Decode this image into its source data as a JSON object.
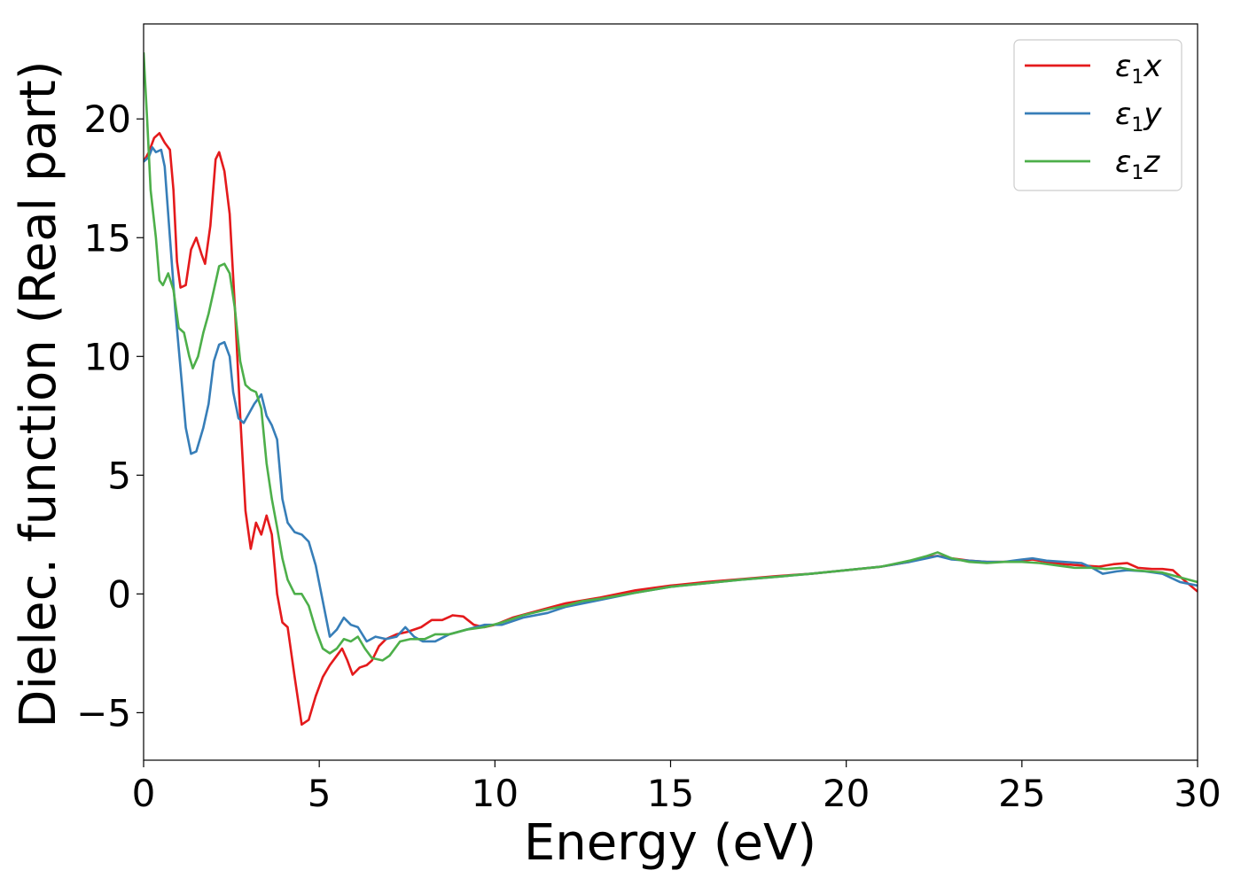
{
  "chart_data": {
    "type": "line",
    "xlabel": "Energy (eV)",
    "ylabel": "Dielec. function (Real part)",
    "xlim": [
      0,
      30
    ],
    "ylim": [
      -7,
      24
    ],
    "xticks": [
      0,
      5,
      10,
      15,
      20,
      25,
      30
    ],
    "xtick_labels": [
      "0",
      "5",
      "10",
      "15",
      "20",
      "25",
      "30"
    ],
    "yticks": [
      -5,
      0,
      5,
      10,
      15,
      20
    ],
    "ytick_labels": [
      "−5",
      "0",
      "5",
      "10",
      "15",
      "20"
    ],
    "grid": false,
    "legend_position": "top-right",
    "series": [
      {
        "name": "ε1x",
        "legend": {
          "sym": "ε",
          "sub": "1",
          "axis": "x"
        },
        "color": "#e41a1c",
        "points": [
          [
            0,
            18.2
          ],
          [
            0.15,
            18.6
          ],
          [
            0.3,
            19.2
          ],
          [
            0.45,
            19.4
          ],
          [
            0.6,
            19.0
          ],
          [
            0.75,
            18.7
          ],
          [
            0.85,
            17.0
          ],
          [
            0.95,
            14.0
          ],
          [
            1.05,
            12.9
          ],
          [
            1.2,
            13.0
          ],
          [
            1.35,
            14.5
          ],
          [
            1.5,
            15.0
          ],
          [
            1.65,
            14.3
          ],
          [
            1.75,
            13.9
          ],
          [
            1.9,
            15.5
          ],
          [
            2.05,
            18.3
          ],
          [
            2.15,
            18.6
          ],
          [
            2.3,
            17.8
          ],
          [
            2.45,
            16.0
          ],
          [
            2.6,
            12.0
          ],
          [
            2.75,
            7.5
          ],
          [
            2.9,
            3.5
          ],
          [
            3.05,
            1.9
          ],
          [
            3.2,
            3.0
          ],
          [
            3.35,
            2.5
          ],
          [
            3.5,
            3.3
          ],
          [
            3.65,
            2.5
          ],
          [
            3.8,
            0.0
          ],
          [
            3.95,
            -1.2
          ],
          [
            4.1,
            -1.4
          ],
          [
            4.3,
            -3.5
          ],
          [
            4.5,
            -5.5
          ],
          [
            4.7,
            -5.3
          ],
          [
            4.9,
            -4.3
          ],
          [
            5.1,
            -3.5
          ],
          [
            5.3,
            -3.0
          ],
          [
            5.5,
            -2.6
          ],
          [
            5.65,
            -2.3
          ],
          [
            5.8,
            -2.8
          ],
          [
            5.95,
            -3.4
          ],
          [
            6.15,
            -3.1
          ],
          [
            6.35,
            -3.0
          ],
          [
            6.5,
            -2.8
          ],
          [
            6.7,
            -2.2
          ],
          [
            6.9,
            -1.9
          ],
          [
            7.2,
            -1.7
          ],
          [
            7.5,
            -1.6
          ],
          [
            7.9,
            -1.4
          ],
          [
            8.2,
            -1.1
          ],
          [
            8.5,
            -1.1
          ],
          [
            8.8,
            -0.9
          ],
          [
            9.1,
            -0.95
          ],
          [
            9.4,
            -1.3
          ],
          [
            9.7,
            -1.4
          ],
          [
            10.0,
            -1.3
          ],
          [
            10.5,
            -1.0
          ],
          [
            11.0,
            -0.8
          ],
          [
            11.5,
            -0.6
          ],
          [
            12.0,
            -0.4
          ],
          [
            13.0,
            -0.15
          ],
          [
            14.0,
            0.15
          ],
          [
            15.0,
            0.35
          ],
          [
            16.0,
            0.5
          ],
          [
            17.0,
            0.62
          ],
          [
            18.0,
            0.75
          ],
          [
            19.0,
            0.85
          ],
          [
            20.0,
            1.0
          ],
          [
            21.0,
            1.15
          ],
          [
            21.8,
            1.35
          ],
          [
            22.3,
            1.55
          ],
          [
            22.6,
            1.6
          ],
          [
            23.0,
            1.5
          ],
          [
            23.5,
            1.4
          ],
          [
            24.0,
            1.35
          ],
          [
            24.5,
            1.35
          ],
          [
            25.0,
            1.4
          ],
          [
            25.3,
            1.45
          ],
          [
            25.7,
            1.35
          ],
          [
            26.2,
            1.25
          ],
          [
            26.7,
            1.2
          ],
          [
            27.2,
            1.15
          ],
          [
            27.6,
            1.25
          ],
          [
            28.0,
            1.3
          ],
          [
            28.3,
            1.1
          ],
          [
            28.7,
            1.05
          ],
          [
            29.0,
            1.05
          ],
          [
            29.3,
            1.0
          ],
          [
            29.6,
            0.6
          ],
          [
            30.0,
            0.1
          ]
        ]
      },
      {
        "name": "ε1y",
        "legend": {
          "sym": "ε",
          "sub": "1",
          "axis": "y"
        },
        "color": "#377eb8",
        "points": [
          [
            0,
            18.2
          ],
          [
            0.15,
            18.4
          ],
          [
            0.25,
            18.8
          ],
          [
            0.35,
            18.6
          ],
          [
            0.5,
            18.7
          ],
          [
            0.6,
            18.0
          ],
          [
            0.75,
            15.0
          ],
          [
            0.9,
            12.0
          ],
          [
            1.05,
            9.5
          ],
          [
            1.2,
            7.0
          ],
          [
            1.35,
            5.9
          ],
          [
            1.5,
            6.0
          ],
          [
            1.7,
            7.0
          ],
          [
            1.85,
            8.0
          ],
          [
            2.0,
            9.8
          ],
          [
            2.15,
            10.5
          ],
          [
            2.3,
            10.6
          ],
          [
            2.45,
            10.0
          ],
          [
            2.55,
            8.5
          ],
          [
            2.7,
            7.4
          ],
          [
            2.85,
            7.2
          ],
          [
            3.0,
            7.6
          ],
          [
            3.15,
            8.0
          ],
          [
            3.35,
            8.4
          ],
          [
            3.5,
            7.5
          ],
          [
            3.65,
            7.1
          ],
          [
            3.8,
            6.5
          ],
          [
            3.95,
            4.0
          ],
          [
            4.1,
            3.0
          ],
          [
            4.3,
            2.6
          ],
          [
            4.5,
            2.5
          ],
          [
            4.7,
            2.2
          ],
          [
            4.9,
            1.2
          ],
          [
            5.1,
            -0.3
          ],
          [
            5.3,
            -1.8
          ],
          [
            5.5,
            -1.5
          ],
          [
            5.7,
            -1.0
          ],
          [
            5.9,
            -1.3
          ],
          [
            6.1,
            -1.4
          ],
          [
            6.35,
            -2.0
          ],
          [
            6.6,
            -1.8
          ],
          [
            6.9,
            -1.9
          ],
          [
            7.2,
            -1.8
          ],
          [
            7.45,
            -1.4
          ],
          [
            7.7,
            -1.8
          ],
          [
            7.95,
            -2.0
          ],
          [
            8.3,
            -2.0
          ],
          [
            8.7,
            -1.7
          ],
          [
            9.2,
            -1.5
          ],
          [
            9.7,
            -1.3
          ],
          [
            10.2,
            -1.3
          ],
          [
            10.8,
            -1.0
          ],
          [
            11.5,
            -0.8
          ],
          [
            12.0,
            -0.55
          ],
          [
            12.5,
            -0.4
          ],
          [
            13.0,
            -0.25
          ],
          [
            14.0,
            0.05
          ],
          [
            15.0,
            0.3
          ],
          [
            16.0,
            0.45
          ],
          [
            17.0,
            0.6
          ],
          [
            18.0,
            0.72
          ],
          [
            19.0,
            0.85
          ],
          [
            20.0,
            1.0
          ],
          [
            21.0,
            1.15
          ],
          [
            21.8,
            1.35
          ],
          [
            22.3,
            1.5
          ],
          [
            22.6,
            1.6
          ],
          [
            23.0,
            1.45
          ],
          [
            23.5,
            1.4
          ],
          [
            24.0,
            1.35
          ],
          [
            24.5,
            1.35
          ],
          [
            25.0,
            1.45
          ],
          [
            25.3,
            1.5
          ],
          [
            25.7,
            1.4
          ],
          [
            26.2,
            1.35
          ],
          [
            26.7,
            1.3
          ],
          [
            27.0,
            1.1
          ],
          [
            27.3,
            0.85
          ],
          [
            27.7,
            0.95
          ],
          [
            28.0,
            1.0
          ],
          [
            28.5,
            0.95
          ],
          [
            29.0,
            0.85
          ],
          [
            29.5,
            0.5
          ],
          [
            30.0,
            0.35
          ]
        ]
      },
      {
        "name": "ε1z",
        "legend": {
          "sym": "ε",
          "sub": "1",
          "axis": "z"
        },
        "color": "#4daf4a",
        "points": [
          [
            0,
            22.8
          ],
          [
            0.1,
            20.0
          ],
          [
            0.2,
            17.0
          ],
          [
            0.35,
            15.0
          ],
          [
            0.45,
            13.2
          ],
          [
            0.55,
            13.0
          ],
          [
            0.7,
            13.5
          ],
          [
            0.85,
            12.8
          ],
          [
            1.0,
            11.2
          ],
          [
            1.15,
            11.0
          ],
          [
            1.3,
            10.0
          ],
          [
            1.4,
            9.5
          ],
          [
            1.55,
            10.0
          ],
          [
            1.7,
            11.0
          ],
          [
            1.85,
            11.8
          ],
          [
            2.0,
            12.8
          ],
          [
            2.15,
            13.8
          ],
          [
            2.3,
            13.9
          ],
          [
            2.45,
            13.5
          ],
          [
            2.6,
            12.0
          ],
          [
            2.75,
            9.8
          ],
          [
            2.9,
            8.8
          ],
          [
            3.05,
            8.6
          ],
          [
            3.2,
            8.5
          ],
          [
            3.35,
            7.8
          ],
          [
            3.5,
            5.5
          ],
          [
            3.65,
            4.0
          ],
          [
            3.8,
            2.8
          ],
          [
            3.95,
            1.5
          ],
          [
            4.1,
            0.6
          ],
          [
            4.3,
            0.0
          ],
          [
            4.5,
            0.0
          ],
          [
            4.7,
            -0.5
          ],
          [
            4.9,
            -1.5
          ],
          [
            5.1,
            -2.3
          ],
          [
            5.3,
            -2.5
          ],
          [
            5.5,
            -2.3
          ],
          [
            5.7,
            -1.9
          ],
          [
            5.9,
            -2.0
          ],
          [
            6.1,
            -1.8
          ],
          [
            6.3,
            -2.3
          ],
          [
            6.5,
            -2.7
          ],
          [
            6.8,
            -2.8
          ],
          [
            7.0,
            -2.6
          ],
          [
            7.3,
            -2.0
          ],
          [
            7.6,
            -1.9
          ],
          [
            8.0,
            -1.9
          ],
          [
            8.3,
            -1.7
          ],
          [
            8.7,
            -1.7
          ],
          [
            9.2,
            -1.5
          ],
          [
            9.7,
            -1.4
          ],
          [
            10.2,
            -1.2
          ],
          [
            10.8,
            -0.9
          ],
          [
            11.5,
            -0.65
          ],
          [
            12.0,
            -0.5
          ],
          [
            12.5,
            -0.3
          ],
          [
            13.0,
            -0.2
          ],
          [
            14.0,
            0.05
          ],
          [
            15.0,
            0.3
          ],
          [
            16.0,
            0.45
          ],
          [
            17.0,
            0.6
          ],
          [
            18.0,
            0.72
          ],
          [
            19.0,
            0.85
          ],
          [
            20.0,
            1.0
          ],
          [
            21.0,
            1.15
          ],
          [
            21.8,
            1.4
          ],
          [
            22.3,
            1.6
          ],
          [
            22.6,
            1.75
          ],
          [
            23.0,
            1.5
          ],
          [
            23.5,
            1.35
          ],
          [
            24.0,
            1.3
          ],
          [
            24.5,
            1.35
          ],
          [
            25.0,
            1.35
          ],
          [
            25.5,
            1.3
          ],
          [
            26.0,
            1.2
          ],
          [
            26.5,
            1.1
          ],
          [
            27.0,
            1.1
          ],
          [
            27.4,
            1.05
          ],
          [
            27.8,
            1.1
          ],
          [
            28.2,
            1.0
          ],
          [
            28.6,
            0.95
          ],
          [
            29.0,
            0.9
          ],
          [
            29.5,
            0.7
          ],
          [
            30.0,
            0.5
          ]
        ]
      }
    ]
  }
}
